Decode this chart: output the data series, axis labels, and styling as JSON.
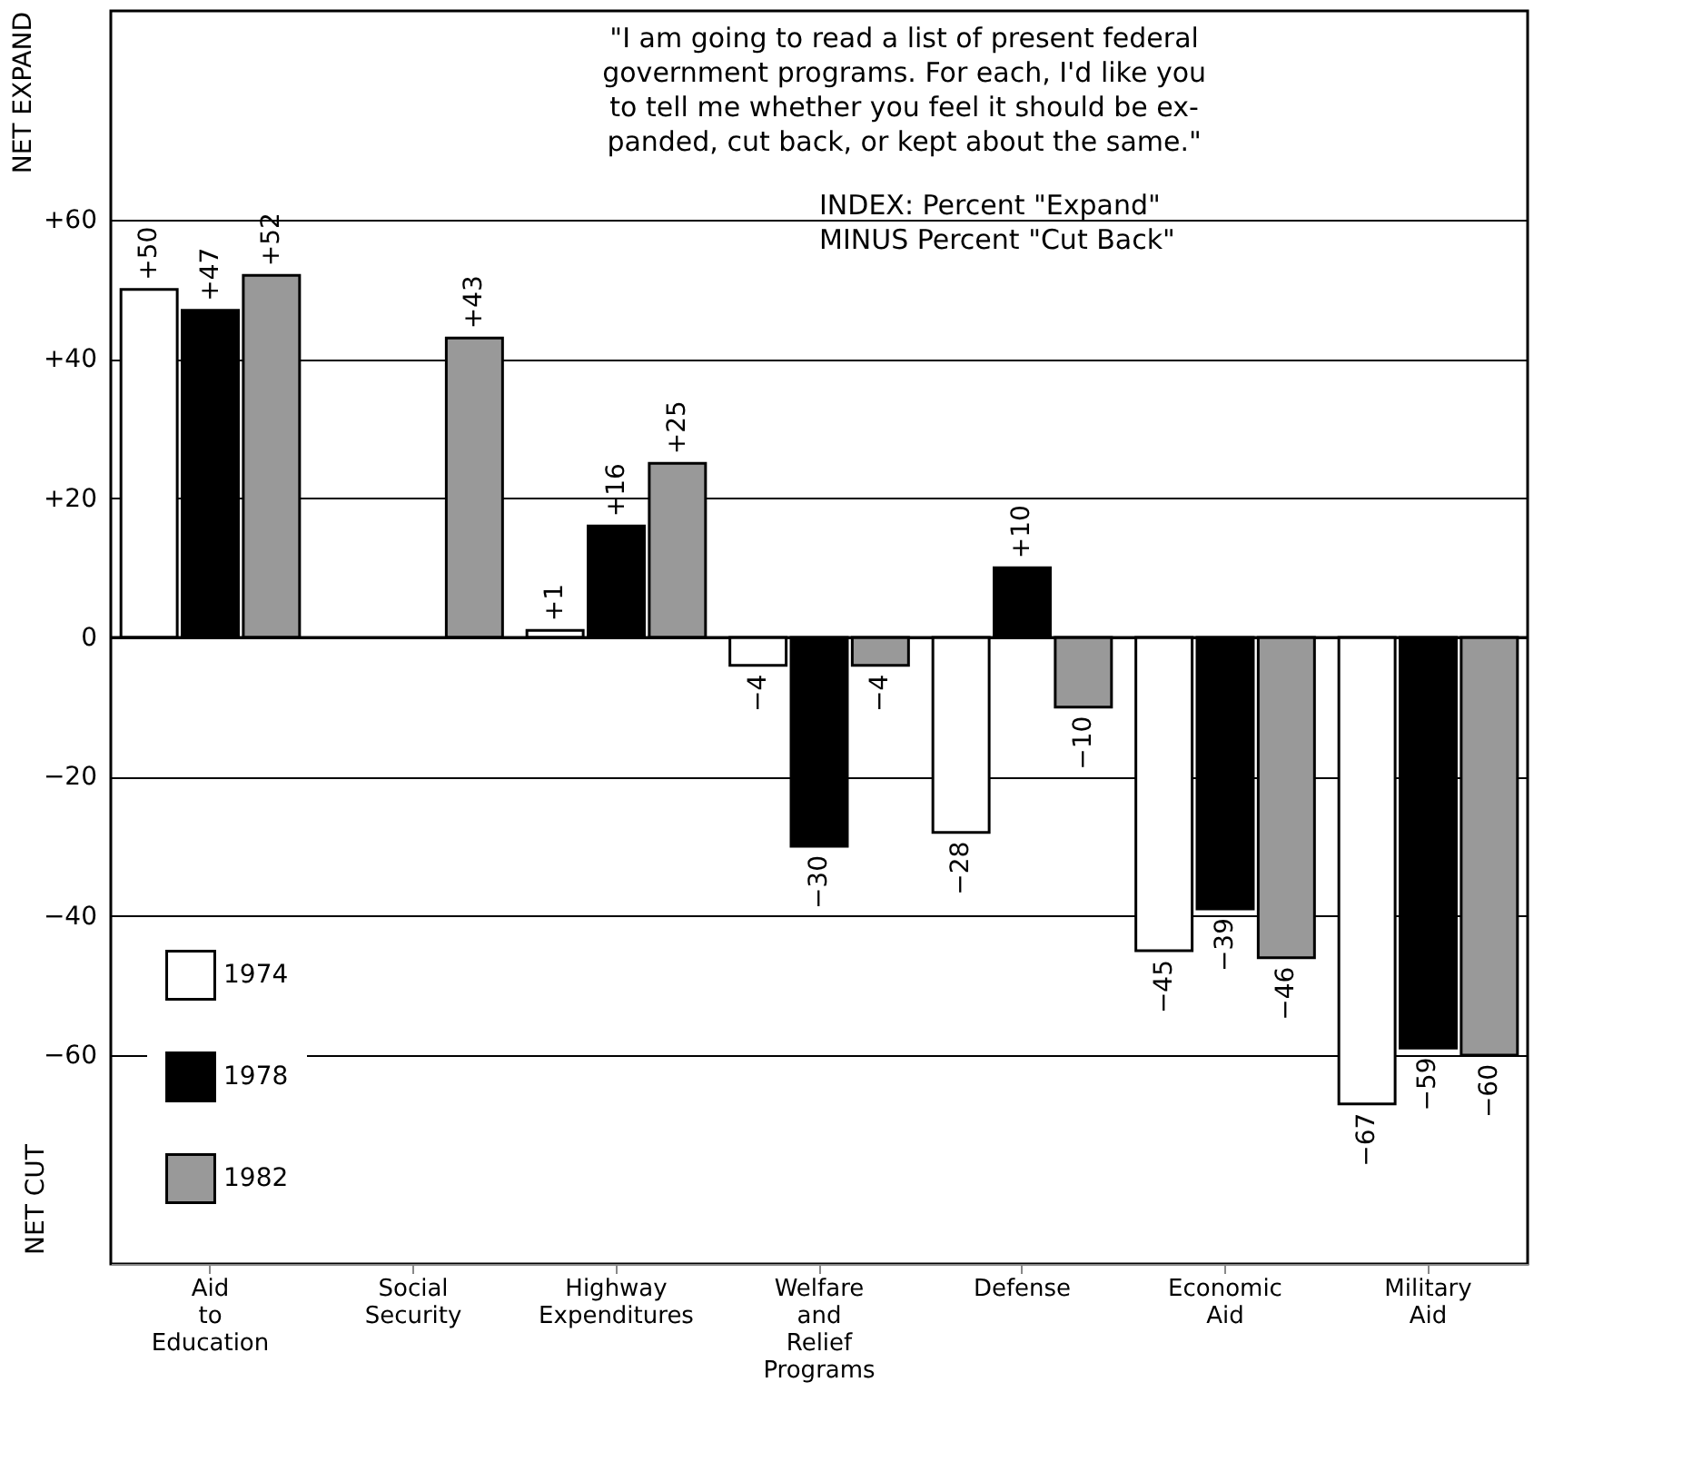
{
  "chart_data": {
    "type": "bar",
    "ylabel": "NET EXPAND",
    "categories": [
      "Aid to Education",
      "Social Security",
      "Highway Expenditures",
      "Welfare and Relief Programs",
      "Defense",
      "Economic Aid",
      "Military Aid"
    ],
    "series": [
      {
        "name": "1974",
        "color": "#ffffff",
        "values": [
          50,
          null,
          1,
          -4,
          -28,
          -45,
          -67
        ],
        "value_labels": [
          "+50",
          null,
          "+1",
          "−4",
          "−28",
          "−45",
          "−67"
        ]
      },
      {
        "name": "1978",
        "color": "#000000",
        "values": [
          47,
          null,
          16,
          -30,
          10,
          -39,
          -59
        ],
        "value_labels": [
          "+47",
          null,
          "+16",
          "−30",
          "+10",
          "−39",
          "−59"
        ]
      },
      {
        "name": "1982",
        "color": "#999999",
        "values": [
          52,
          43,
          25,
          -4,
          -10,
          -46,
          -60
        ],
        "value_labels": [
          "+52",
          "+43",
          "+25",
          "−4",
          "−10",
          "−46",
          "−60"
        ]
      }
    ],
    "ylim": [
      -90,
      90
    ],
    "yticks": [
      {
        "value": 60,
        "label": "+60"
      },
      {
        "value": 40,
        "label": "+40"
      },
      {
        "value": 20,
        "label": "+20"
      },
      0,
      {
        "value": -20,
        "label": "−20"
      },
      {
        "value": -40,
        "label": "−40"
      },
      {
        "value": -60,
        "label": "−60"
      }
    ],
    "grid": "y",
    "legend": "bottom left",
    "annotations": [
      "\"I am going to read a list of present federal\ngovernment programs. For each, I'd like you\nto tell me whether you feel it should be ex-\npanded, cut back, or kept about the same.\"",
      "INDEX: Percent \"Expand\"\n       MINUS Percent \"Cut Back\"",
      "NET CUT"
    ]
  }
}
